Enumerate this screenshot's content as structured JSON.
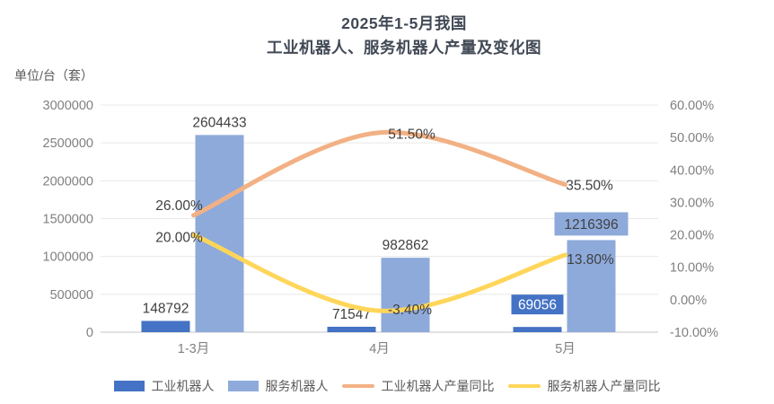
{
  "title": {
    "line1": "2025年1-5月我国",
    "line2": "工业机器人、服务机器人产量及变化图"
  },
  "axis_unit_label": "单位/台（套）",
  "colors": {
    "industrial_bar": "#4472C4",
    "service_bar": "#8EAADB",
    "industrial_line": "#F2B184",
    "service_line": "#FFD65A",
    "title_text": "#414955",
    "axis_text": "#808080",
    "label_text": "#404040",
    "label_text_on_dark": "#FFFFFF",
    "gridline": "#E8E8E8",
    "axis_line": "#C6C6C6"
  },
  "chart_data": {
    "type": "bar",
    "subtype": "bar-line-combo",
    "title": "2025年1-5月我国 工业机器人、服务机器人产量及变化图",
    "categories": [
      "1-3月",
      "4月",
      "5月"
    ],
    "series": [
      {
        "name": "工业机器人",
        "kind": "bar",
        "axis": "left",
        "values": [
          148792,
          71547,
          69056
        ],
        "labels": [
          "148792",
          "71547",
          "69056"
        ],
        "label_boxed": [
          false,
          false,
          true
        ],
        "color_key": "industrial_bar"
      },
      {
        "name": "服务机器人",
        "kind": "bar",
        "axis": "left",
        "values": [
          2604433,
          982862,
          1216396
        ],
        "labels": [
          "2604433",
          "982862",
          "1216396"
        ],
        "label_boxed": [
          false,
          false,
          true
        ],
        "color_key": "service_bar"
      },
      {
        "name": "工业机器人产量同比",
        "kind": "line",
        "axis": "right",
        "values": [
          26.0,
          51.5,
          35.5
        ],
        "labels": [
          "26.00%",
          "51.50%",
          "35.50%"
        ],
        "color_key": "industrial_line"
      },
      {
        "name": "服务机器人产量同比",
        "kind": "line",
        "axis": "right",
        "values": [
          20.0,
          -3.4,
          13.8
        ],
        "labels": [
          "20.00%",
          "-3.40%",
          "13.80%"
        ],
        "color_key": "service_line"
      }
    ],
    "left_axis": {
      "label": "单位/台（套）",
      "min": 0,
      "max": 3000000,
      "step": 500000,
      "ticks": [
        "3000000",
        "2500000",
        "2000000",
        "1500000",
        "1000000",
        "500000",
        "0"
      ]
    },
    "right_axis": {
      "min": -10,
      "max": 60,
      "step": 10,
      "ticks": [
        "60.00%",
        "50.00%",
        "40.00%",
        "30.00%",
        "20.00%",
        "10.00%",
        "0.00%",
        "-10.00%"
      ]
    },
    "grid": true,
    "legend_position": "bottom"
  },
  "legend": {
    "items": [
      {
        "label": "工业机器人",
        "swatch": "bar",
        "color": "#4472C4"
      },
      {
        "label": "服务机器人",
        "swatch": "bar",
        "color": "#8EAADB"
      },
      {
        "label": "工业机器人产量同比",
        "swatch": "line",
        "color": "#F2B184"
      },
      {
        "label": "服务机器人产量同比",
        "swatch": "line",
        "color": "#FFD65A"
      }
    ]
  }
}
